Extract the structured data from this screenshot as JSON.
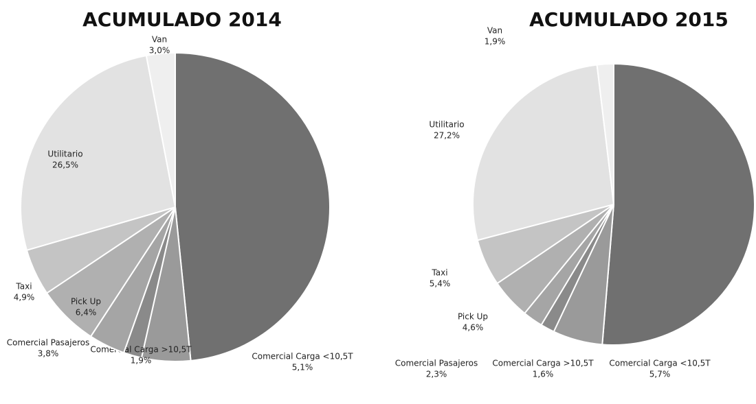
{
  "chart_data": [
    {
      "type": "pie",
      "title": "ACUMULADO 2014",
      "categories": [
        null,
        "Comercial Carga <10,5T",
        "Comercial Carga >10,5T",
        "Comercial Pasajeros",
        "Pick Up",
        "Taxi",
        "Utilitario",
        "Van"
      ],
      "values": [
        48.4,
        5.1,
        1.9,
        3.8,
        6.4,
        4.9,
        26.5,
        3.0
      ],
      "value_labels": [
        null,
        "5,1%",
        "1,9%",
        "3,8%",
        "6,4%",
        "4,9%",
        "26,5%",
        "3,0%"
      ],
      "colors": [
        "#707070",
        "#9a9a9a",
        "#8a8a8a",
        "#a5a5a5",
        "#b0b0b0",
        "#c4c4c4",
        "#e2e2e2",
        "#efefef"
      ]
    },
    {
      "type": "pie",
      "title": "ACUMULADO 2015",
      "categories": [
        null,
        "Comercial Carga <10,5T",
        "Comercial Carga >10,5T",
        "Comercial Pasajeros",
        "Pick Up",
        "Taxi",
        "Utilitario",
        "Van"
      ],
      "values": [
        51.3,
        5.7,
        1.6,
        2.3,
        4.6,
        5.4,
        27.2,
        1.9
      ],
      "value_labels": [
        null,
        "5,7%",
        "1,6%",
        "2,3%",
        "4,6%",
        "5,4%",
        "27,2%",
        "1,9%"
      ],
      "colors": [
        "#707070",
        "#9a9a9a",
        "#8a8a8a",
        "#a5a5a5",
        "#b0b0b0",
        "#c4c4c4",
        "#e2e2e2",
        "#efefef"
      ]
    }
  ]
}
